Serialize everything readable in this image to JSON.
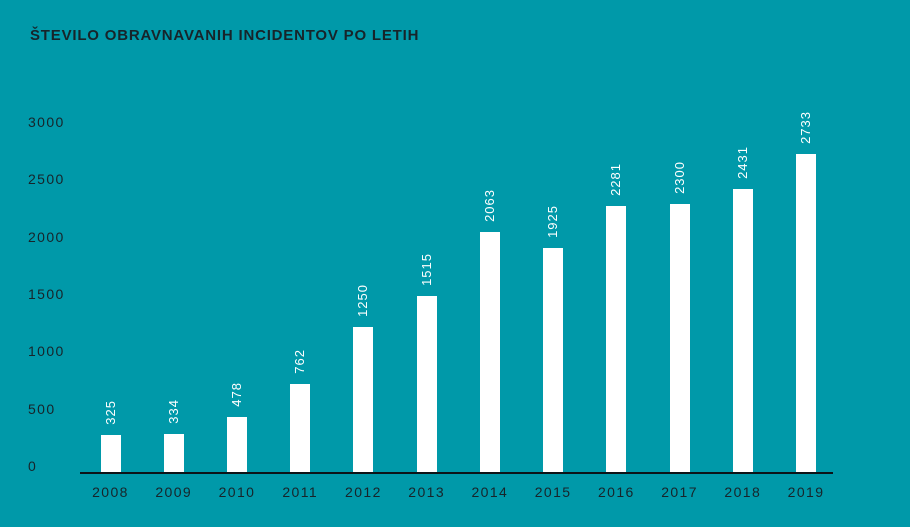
{
  "chart_data": {
    "type": "bar",
    "title": "ŠTEVILO OBRAVNAVANIH INCIDENTOV PO LETIH",
    "categories": [
      "2008",
      "2009",
      "2010",
      "2011",
      "2012",
      "2013",
      "2014",
      "2015",
      "2016",
      "2017",
      "2018",
      "2019"
    ],
    "values": [
      325,
      334,
      478,
      762,
      1250,
      1515,
      2063,
      1925,
      2281,
      2300,
      2431,
      2733
    ],
    "xlabel": "",
    "ylabel": "",
    "ylim": [
      0,
      3000
    ],
    "y_ticks": [
      0,
      500,
      1000,
      1500,
      2000,
      2500,
      3000
    ],
    "grid": false,
    "legend": false,
    "value_label_style": "rotated-90-above-bar",
    "colors": {
      "background": "#0099a9",
      "bar": "#ffffff",
      "value_label": "#ffffff",
      "axis_text": "#17242a",
      "title": "#17242a",
      "axis_line": "#0d1418"
    }
  }
}
